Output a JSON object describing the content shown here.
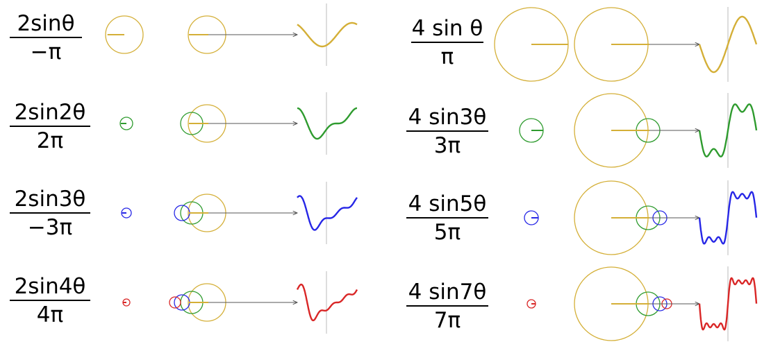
{
  "colors": {
    "gold": "#D4AF37",
    "green": "#2E9B2E",
    "blue": "#2626E6",
    "red": "#D92626",
    "arrow": "#555555",
    "guide": "#BBBBBB"
  },
  "panels": [
    {
      "name": "square-wave-approx",
      "rows": [
        {
          "numerator": "2sinθ",
          "denominator": "−π",
          "color": "gold"
        },
        {
          "numerator": "2sin2θ",
          "denominator": "2π",
          "color": "green"
        },
        {
          "numerator": "2sin3θ",
          "denominator": "−3π",
          "color": "blue"
        },
        {
          "numerator": "2sin4θ",
          "denominator": "4π",
          "color": "red"
        }
      ]
    },
    {
      "name": "square-wave-odd-harmonics",
      "rows": [
        {
          "numerator": "4 sin θ",
          "denominator": "π",
          "color": "gold"
        },
        {
          "numerator": "4 sin3θ",
          "denominator": "3π",
          "color": "green"
        },
        {
          "numerator": "4 sin5θ",
          "denominator": "5π",
          "color": "blue"
        },
        {
          "numerator": "4 sin7θ",
          "denominator": "7π",
          "color": "red"
        }
      ]
    }
  ]
}
